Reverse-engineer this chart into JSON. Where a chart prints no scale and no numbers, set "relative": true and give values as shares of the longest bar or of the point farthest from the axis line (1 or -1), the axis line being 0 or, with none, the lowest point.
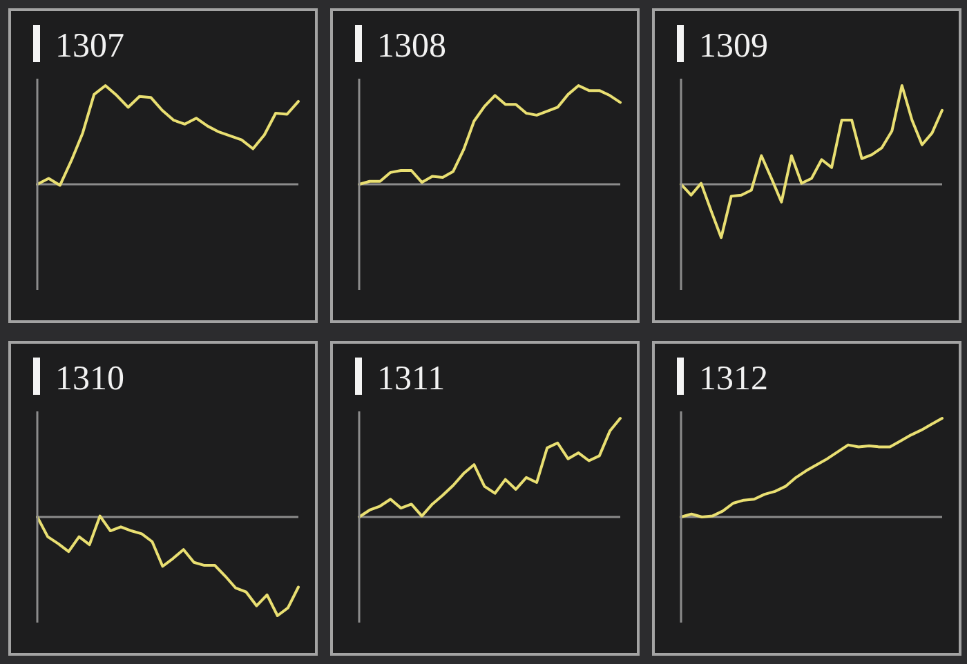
{
  "chart_data": [
    {
      "type": "line",
      "title": "1307",
      "relative": true,
      "categories": [
        null,
        null,
        null,
        null,
        null,
        null,
        null,
        null,
        null,
        null,
        null,
        null,
        null,
        null,
        null,
        null,
        null,
        null,
        null,
        null,
        null,
        null,
        null,
        null
      ],
      "color": "#e9df72",
      "values": [
        0,
        0.06,
        -0.01,
        0.24,
        0.52,
        0.91,
        1,
        0.9,
        0.78,
        0.89,
        0.88,
        0.75,
        0.65,
        0.61,
        0.67,
        0.59,
        0.53,
        0.49,
        0.45,
        0.36,
        0.5,
        0.72,
        0.71,
        0.84
      ]
    },
    {
      "type": "line",
      "title": "1308",
      "relative": true,
      "categories": [
        null,
        null,
        null,
        null,
        null,
        null,
        null,
        null,
        null,
        null,
        null,
        null,
        null,
        null,
        null,
        null,
        null,
        null,
        null,
        null,
        null,
        null,
        null,
        null,
        null,
        null
      ],
      "color": "#e9df72",
      "values": [
        0,
        0.03,
        0.03,
        0.12,
        0.14,
        0.14,
        0.02,
        0.08,
        0.07,
        0.13,
        0.35,
        0.64,
        0.79,
        0.9,
        0.81,
        0.81,
        0.72,
        0.7,
        0.74,
        0.78,
        0.91,
        1,
        0.95,
        0.95,
        0.9,
        0.83
      ]
    },
    {
      "type": "line",
      "title": "1309",
      "relative": true,
      "categories": [
        null,
        null,
        null,
        null,
        null,
        null,
        null,
        null,
        null,
        null,
        null,
        null,
        null,
        null,
        null,
        null,
        null,
        null,
        null,
        null,
        null,
        null,
        null,
        null,
        null,
        null,
        null
      ],
      "color": "#e9df72",
      "values": [
        0,
        -0.11,
        0.01,
        -0.27,
        -0.54,
        -0.12,
        -0.11,
        -0.06,
        0.29,
        0.06,
        -0.18,
        0.29,
        0.01,
        0.06,
        0.25,
        0.17,
        0.65,
        0.65,
        0.26,
        0.3,
        0.37,
        0.54,
        1,
        0.65,
        0.4,
        0.52,
        0.75
      ]
    },
    {
      "type": "line",
      "title": "1310",
      "relative": true,
      "categories": [
        null,
        null,
        null,
        null,
        null,
        null,
        null,
        null,
        null,
        null,
        null,
        null,
        null,
        null,
        null,
        null,
        null,
        null,
        null,
        null,
        null,
        null,
        null,
        null,
        null,
        null
      ],
      "color": "#e9df72",
      "values": [
        0,
        -0.2,
        -0.27,
        -0.35,
        -0.2,
        -0.28,
        0.01,
        -0.14,
        -0.1,
        -0.14,
        -0.17,
        -0.25,
        -0.5,
        -0.42,
        -0.33,
        -0.46,
        -0.49,
        -0.49,
        -0.6,
        -0.72,
        -0.76,
        -0.9,
        -0.79,
        -1,
        -0.92,
        -0.71
      ]
    },
    {
      "type": "line",
      "title": "1311",
      "relative": true,
      "categories": [
        null,
        null,
        null,
        null,
        null,
        null,
        null,
        null,
        null,
        null,
        null,
        null,
        null,
        null,
        null,
        null,
        null,
        null,
        null,
        null,
        null,
        null,
        null,
        null,
        null,
        null
      ],
      "color": "#e9df72",
      "values": [
        0,
        0.07,
        0.11,
        0.18,
        0.09,
        0.13,
        0.01,
        0.13,
        0.22,
        0.32,
        0.44,
        0.53,
        0.31,
        0.24,
        0.38,
        0.28,
        0.4,
        0.35,
        0.7,
        0.75,
        0.59,
        0.65,
        0.57,
        0.62,
        0.87,
        1
      ]
    },
    {
      "type": "line",
      "title": "1312",
      "relative": true,
      "categories": [
        null,
        null,
        null,
        null,
        null,
        null,
        null,
        null,
        null,
        null,
        null,
        null,
        null,
        null,
        null,
        null,
        null,
        null,
        null,
        null,
        null,
        null,
        null,
        null,
        null,
        null
      ],
      "color": "#e9df72",
      "values": [
        0,
        0.03,
        0,
        0.01,
        0.06,
        0.14,
        0.17,
        0.18,
        0.23,
        0.26,
        0.31,
        0.4,
        0.47,
        0.53,
        0.59,
        0.66,
        0.73,
        0.71,
        0.72,
        0.71,
        0.71,
        0.77,
        0.83,
        0.88,
        0.94,
        1
      ]
    }
  ]
}
